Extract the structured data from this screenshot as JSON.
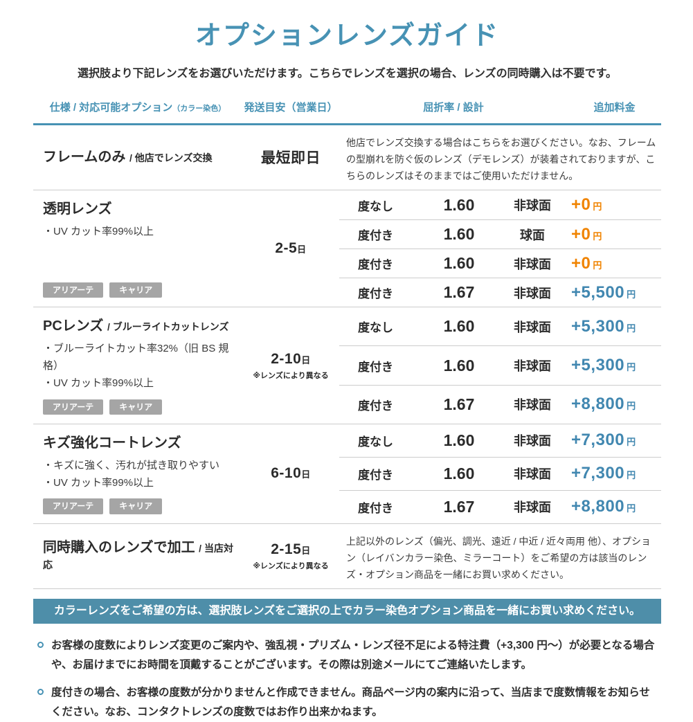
{
  "page": {
    "title": "オプションレンズガイド",
    "subtitle": "選択肢より下記レンズをお選びいただけます。こちらでレンズを選択の場合、レンズの同時購入は不要です。"
  },
  "colors": {
    "accent": "#4792b4",
    "banner_bg": "#4e8ea9",
    "price_orange": "#f08300",
    "price_blue": "#4187b0",
    "badge_bg": "#a5a5a5"
  },
  "table": {
    "headers": [
      {
        "label": "仕様 / 対応可能オプション",
        "sub": "（カラー染色）"
      },
      {
        "label": "発送目安（営業日）",
        "sub": ""
      },
      {
        "label": "屈折率 / 設計",
        "sub": ""
      },
      {
        "label": "追加料金",
        "sub": ""
      }
    ],
    "sections": [
      {
        "name": "フレームのみ",
        "name_suffix": "/ 他店でレンズ交換",
        "features": [],
        "badges": [],
        "shipping": "最短即日",
        "shipping_unit": "",
        "shipping_note": "",
        "description": "他店でレンズ交換する場合はこちらをお選びください。なお、フレームの型崩れを防ぐ仮のレンズ（デモレンズ）が装着されておりますが、こちらのレンズはそのままではご使用いただけません。",
        "rows": []
      },
      {
        "name": "透明レンズ",
        "name_suffix": "",
        "features": [
          "・UV カット率99%以上"
        ],
        "badges": [
          "アリアーテ",
          "キャリア"
        ],
        "shipping": "2-5",
        "shipping_unit": "日",
        "shipping_note": "",
        "description": "",
        "rows": [
          {
            "power": "度なし",
            "index": "1.60",
            "design": "非球面",
            "price": "+0",
            "price_unit": "円",
            "price_color": "orange"
          },
          {
            "power": "度付き",
            "index": "1.60",
            "design": "球面",
            "price": "+0",
            "price_unit": "円",
            "price_color": "orange"
          },
          {
            "power": "度付き",
            "index": "1.60",
            "design": "非球面",
            "price": "+0",
            "price_unit": "円",
            "price_color": "orange"
          },
          {
            "power": "度付き",
            "index": "1.67",
            "design": "非球面",
            "price": "+5,500",
            "price_unit": "円",
            "price_color": "blue"
          }
        ]
      },
      {
        "name": "PCレンズ",
        "name_suffix": "/ ブルーライトカットレンズ",
        "features": [
          "・ブルーライトカット率32%（旧 BS 規格）",
          "・UV カット率99%以上"
        ],
        "badges": [
          "アリアーテ",
          "キャリア"
        ],
        "shipping": "2-10",
        "shipping_unit": "日",
        "shipping_note": "※レンズにより異なる",
        "description": "",
        "rows": [
          {
            "power": "度なし",
            "index": "1.60",
            "design": "非球面",
            "price": "+5,300",
            "price_unit": "円",
            "price_color": "blue"
          },
          {
            "power": "度付き",
            "index": "1.60",
            "design": "非球面",
            "price": "+5,300",
            "price_unit": "円",
            "price_color": "blue"
          },
          {
            "power": "度付き",
            "index": "1.67",
            "design": "非球面",
            "price": "+8,800",
            "price_unit": "円",
            "price_color": "blue"
          }
        ]
      },
      {
        "name": "キズ強化コートレンズ",
        "name_suffix": "",
        "features": [
          "・キズに強く、汚れが拭き取りやすい",
          "・UV カット率99%以上"
        ],
        "badges": [
          "アリアーテ",
          "キャリア"
        ],
        "shipping": "6-10",
        "shipping_unit": "日",
        "shipping_note": "",
        "description": "",
        "rows": [
          {
            "power": "度なし",
            "index": "1.60",
            "design": "非球面",
            "price": "+7,300",
            "price_unit": "円",
            "price_color": "blue"
          },
          {
            "power": "度付き",
            "index": "1.60",
            "design": "非球面",
            "price": "+7,300",
            "price_unit": "円",
            "price_color": "blue"
          },
          {
            "power": "度付き",
            "index": "1.67",
            "design": "非球面",
            "price": "+8,800",
            "price_unit": "円",
            "price_color": "blue"
          }
        ]
      },
      {
        "name": "同時購入のレンズで加工",
        "name_suffix": "/ 当店対応",
        "features": [],
        "badges": [],
        "shipping": "2-15",
        "shipping_unit": "日",
        "shipping_note": "※レンズにより異なる",
        "description": "上記以外のレンズ（偏光、調光、遠近 / 中近 / 近々両用 他）、オプション（レイバンカラー染色、ミラーコート）をご希望の方は該当のレンズ・オプション商品を一緒にお買い求めください。",
        "rows": []
      }
    ]
  },
  "banner": {
    "text": "カラーレンズをご希望の方は、選択肢レンズをご選択の上でカラー染色オプション商品を一緒にお買い求めください。"
  },
  "notes": [
    "お客様の度数によりレンズ変更のご案内や、強乱視・プリズム・レンズ径不足による特注費（+3,300 円〜）が必要となる場合や、お届けまでにお時間を頂戴することがございます。その際は別途メールにてご連絡いたします。",
    "度付きの場合、お客様の度数が分かりませんと作成できません。商品ページ内の案内に沿って、当店まで度数情報をお知らせください。なお、コンタクトレンズの度数ではお作り出来かねます。"
  ]
}
